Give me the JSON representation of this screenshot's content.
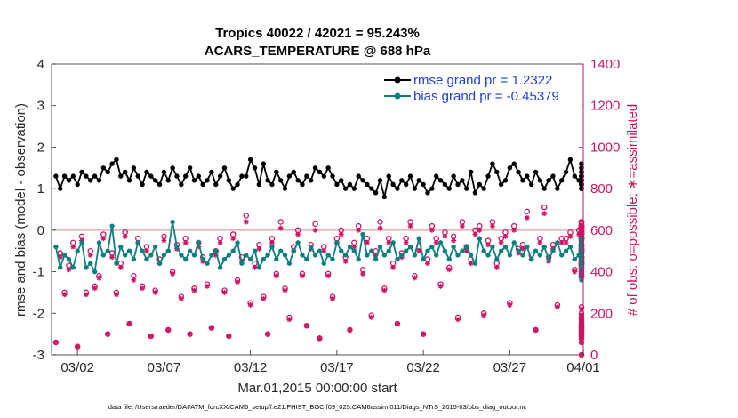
{
  "chart_data": {
    "type": "line",
    "title": "Tropics 40022 / 42021 = 95.243%",
    "subtitle": "ACARS_TEMPERATURE @ 688 hPa",
    "xlabel": "Mar.01,2015 00:00:00 start",
    "ylabel": "rmse and bias (model - observation)",
    "y2label": "# of obs: o=possible; ∗=assimilated",
    "footnote": "data file: /Users/raeder/DAI/ATM_forcXX/CAM6_setup/f.e21.FHIST_BGC.f09_025.CAM6assim.011/Diags_NTrS_2015-03/obs_diag_output.nc",
    "legend": [
      "rmse grand pr = 1.2322",
      "bias grand pr = -0.45379"
    ],
    "colors": {
      "rmse": "#000000",
      "bias": "#0e7f7f",
      "obs": "#cc1464",
      "legend_text": "#1f3fd6"
    },
    "xlim": [
      0.5,
      31.25
    ],
    "ylim": [
      -3,
      4
    ],
    "y2lim": [
      0,
      1400
    ],
    "xtick_values": [
      2,
      7,
      12,
      17,
      22,
      27,
      32
    ],
    "xtick_labels": [
      "03/02",
      "03/07",
      "03/12",
      "03/17",
      "03/22",
      "03/27",
      "04/01"
    ],
    "ytick_labels": [
      "-3",
      "-2",
      "-1",
      "0",
      "1",
      "2",
      "3",
      "4"
    ],
    "y2tick_labels": [
      "0",
      "200",
      "400",
      "600",
      "800",
      "1000",
      "1200",
      "1400"
    ],
    "x_start": 0.75,
    "x_step": 0.25,
    "series": [
      {
        "name": "rmse",
        "values": [
          1.3,
          1.0,
          1.3,
          1.2,
          1.3,
          1.1,
          1.4,
          1.3,
          1.2,
          1.3,
          1.2,
          1.5,
          1.4,
          1.6,
          1.7,
          1.3,
          1.4,
          1.2,
          1.5,
          1.3,
          1.1,
          1.4,
          1.3,
          1.2,
          1.1,
          1.4,
          1.2,
          1.5,
          1.3,
          1.1,
          1.3,
          1.5,
          1.2,
          1.3,
          1.1,
          1.2,
          1.4,
          1.1,
          1.3,
          1.5,
          1.2,
          1.0,
          1.1,
          1.3,
          1.3,
          1.7,
          1.5,
          1.1,
          1.6,
          1.2,
          1.1,
          1.4,
          1.2,
          1.0,
          1.3,
          1.4,
          1.2,
          1.1,
          1.3,
          1.2,
          1.5,
          1.4,
          1.3,
          1.5,
          1.3,
          1.1,
          1.2,
          1.0,
          1.1,
          1.0,
          1.3,
          1.2,
          1.1,
          1.0,
          0.9,
          1.2,
          0.8,
          1.3,
          1.1,
          1.0,
          1.2,
          1.1,
          1.3,
          1.0,
          1.2,
          1.1,
          0.9,
          1.0,
          1.3,
          1.2,
          1.1,
          1.0,
          1.3,
          1.1,
          1.2,
          1.0,
          1.4,
          0.9,
          1.1,
          1.0,
          1.3,
          1.6,
          1.4,
          1.1,
          1.2,
          1.5,
          1.6,
          1.4,
          1.2,
          1.3,
          1.1,
          1.4,
          1.2,
          1.0,
          1.2,
          1.3,
          1.0,
          1.2,
          1.4,
          1.7,
          1.3,
          1.2,
          1.0,
          1.4,
          1.3,
          1.1,
          1.2,
          1.0,
          1.1,
          1.3,
          1.2,
          1.0,
          1.2,
          1.3,
          1.1,
          1.0,
          1.2,
          1.1,
          1.3,
          1.1,
          1.0,
          1.2,
          1.1,
          1.3,
          1.0,
          1.1,
          1.2,
          1.0,
          1.1,
          1.3,
          1.1,
          1.3,
          1.2,
          1.3,
          1.1,
          1.2,
          1.3,
          1.0,
          1.2,
          1.1,
          1.2,
          1.1,
          1.0,
          1.2,
          1.6,
          1.1,
          1.4,
          1.0,
          1.3,
          1.1,
          1.5,
          1.2,
          1.0,
          1.2,
          1.1,
          1.2,
          1.1,
          1.0,
          1.6,
          1.3,
          1.2,
          1.0,
          1.1,
          1.2,
          1.1,
          1.1,
          1.2,
          1.1,
          1.2,
          1.3,
          1.1,
          1.0,
          1.2,
          1.4,
          1.1,
          1.0,
          1.2,
          1.1,
          1.0,
          1.3,
          1.1,
          1.2,
          1.0,
          1.2,
          1.1,
          1.3,
          1.0,
          1.2,
          1.1,
          1.2,
          1.0,
          1.1,
          1.0,
          1.2,
          1.3,
          1.1,
          1.2,
          1.0,
          1.2,
          1.1,
          1.0,
          1.5,
          1.2,
          1.1,
          1.3,
          1.0,
          1.1,
          1.2,
          1.2,
          1.0,
          1.3,
          1.4,
          1.3,
          1.2,
          1.5,
          1.1,
          1.0,
          1.3,
          1.2,
          1.0,
          1.1,
          1.4,
          1.3,
          1.2,
          1.1,
          1.1,
          1.2,
          1.0,
          1.2,
          1.1,
          1.0
        ]
      },
      {
        "name": "bias",
        "values": [
          -0.4,
          -0.9,
          -0.6,
          -0.7,
          -0.9,
          -0.5,
          -0.3,
          -0.9,
          -0.8,
          -1.0,
          -0.3,
          -0.6,
          -0.5,
          0.1,
          -0.8,
          -0.4,
          -0.6,
          -0.5,
          -0.7,
          -0.3,
          -0.5,
          -0.7,
          -0.6,
          -0.4,
          -0.8,
          -0.6,
          -0.5,
          0.2,
          -0.4,
          -0.6,
          -0.7,
          -0.5,
          -0.6,
          -0.3,
          -0.7,
          -0.8,
          -0.6,
          -0.5,
          -0.9,
          -0.7,
          -0.6,
          -0.5,
          -0.3,
          -0.8,
          -0.6,
          -0.7,
          -0.5,
          -0.9,
          -0.7,
          -0.6,
          -0.4,
          -0.7,
          -0.5,
          -0.6,
          -0.8,
          -0.5,
          -0.3,
          -0.6,
          -0.7,
          -0.4,
          -0.6,
          -0.5,
          -0.8,
          -0.6,
          -0.7,
          -0.3,
          -0.5,
          -0.6,
          -0.4,
          -0.5,
          -0.7,
          -0.1,
          -0.6,
          -0.5,
          -0.7,
          -0.4,
          -0.6,
          -0.5,
          -0.3,
          -0.7,
          -0.6,
          -0.5,
          -0.4,
          -0.6,
          -0.2,
          -0.7,
          -0.5,
          -0.4,
          -0.6,
          -0.3,
          -0.5,
          -0.7,
          -0.4,
          -0.6,
          -0.5,
          -0.4,
          -0.6,
          -0.8,
          -0.2,
          -0.5,
          -0.6,
          -0.4,
          -0.7,
          -0.5,
          -0.4,
          -0.6,
          -0.3,
          -0.5,
          -0.6,
          -0.4,
          -0.7,
          -0.5,
          -0.6,
          -0.4,
          -0.7,
          -0.5,
          -0.3,
          -0.6,
          -0.5,
          -0.4,
          -0.7,
          -0.6,
          -0.5,
          -0.4,
          -0.6,
          -0.5,
          -0.7,
          -0.4,
          -0.6,
          -0.5,
          -0.3,
          -0.6,
          -0.5,
          -0.7,
          -0.4,
          -0.6,
          -0.5,
          -0.4,
          -0.6,
          -0.5,
          -0.3,
          -0.6,
          -0.5,
          -0.4,
          -0.7,
          -0.6,
          -0.5,
          -0.4,
          -0.6,
          -0.7,
          -0.5,
          -0.4,
          -0.6,
          -0.5,
          -0.3,
          -0.6,
          -0.7,
          -0.5,
          -0.6,
          -0.4,
          -0.7,
          -0.5,
          -0.6,
          -0.4,
          -0.5,
          -0.6,
          -0.7,
          -0.5,
          -0.6,
          -0.4,
          -0.5,
          -0.7,
          -0.6,
          -0.5,
          -0.4,
          -0.6,
          -0.5,
          -0.7,
          -0.6,
          -0.4,
          -0.5,
          -0.6,
          -0.7,
          -0.5,
          -0.6,
          -0.4,
          -0.5,
          -0.6,
          -0.4,
          -0.7,
          -0.5,
          -0.6,
          -0.4,
          -0.5,
          -0.6,
          -0.5,
          -0.7,
          -0.6,
          -0.4,
          -0.5,
          -0.6,
          -0.4,
          -0.5,
          -0.7,
          -0.6,
          -0.5,
          -0.4,
          -0.6,
          -0.3,
          -0.5,
          -0.7,
          -0.6,
          -0.8,
          -0.5,
          -0.6,
          -0.4,
          -0.7,
          -0.6,
          -0.9,
          -0.4,
          -0.2,
          -0.7,
          -0.6,
          -0.5,
          -0.8,
          -0.6,
          -1.2,
          -0.7,
          -0.9,
          -0.5,
          -0.8,
          -0.6,
          -0.4,
          -0.3,
          -0.6,
          -0.5,
          -0.7,
          -0.6,
          -0.8,
          -0.5,
          -0.6,
          -0.4
        ]
      },
      {
        "name": "obs_possible",
        "axis": "right",
        "values": [
          60,
          490,
          300,
          430,
          540,
          40,
          570,
          300,
          500,
          330,
          380,
          580,
          100,
          490,
          300,
          440,
          590,
          150,
          380,
          560,
          330,
          520,
          90,
          310,
          460,
          570,
          120,
          400,
          530,
          280,
          560,
          100,
          320,
          540,
          470,
          340,
          130,
          500,
          560,
          310,
          90,
          580,
          360,
          470,
          670,
          250,
          440,
          530,
          280,
          100,
          560,
          390,
          640,
          320,
          180,
          520,
          600,
          390,
          140,
          530,
          630,
          80,
          520,
          390,
          280,
          560,
          600,
          470,
          120,
          540,
          620,
          410,
          560,
          190,
          500,
          640,
          320,
          560,
          440,
          150,
          490,
          560,
          640,
          380,
          520,
          100,
          460,
          620,
          560,
          340,
          590,
          420,
          570,
          180,
          640,
          520,
          460,
          600,
          620,
          200,
          550,
          640,
          440,
          560,
          590,
          250,
          620,
          510,
          530,
          690,
          480,
          120,
          560,
          710,
          470,
          530,
          240,
          560,
          560,
          590,
          410,
          600,
          640,
          470,
          540,
          90,
          530,
          640,
          400,
          560,
          640,
          60,
          510,
          600,
          490,
          180,
          560,
          640,
          440,
          590,
          100,
          520,
          620,
          390,
          460,
          630,
          80,
          490,
          620,
          430,
          560,
          130,
          520,
          600,
          440,
          590,
          170,
          500,
          620,
          380,
          550,
          140,
          500,
          610,
          470,
          560,
          120,
          530,
          600,
          420,
          580,
          160,
          510,
          620,
          440,
          560,
          140,
          490,
          610,
          380,
          590,
          110,
          520,
          600,
          460,
          560,
          130,
          500,
          620,
          420,
          580,
          150,
          510,
          610,
          440,
          560,
          90,
          490,
          600,
          470,
          580,
          120,
          520,
          610,
          420,
          560,
          140,
          500,
          620,
          450,
          590,
          110,
          510,
          600,
          430,
          570,
          130,
          490,
          620,
          450,
          580,
          100,
          500,
          610,
          440,
          560,
          120,
          520,
          600,
          470,
          590,
          140,
          510,
          620,
          420,
          560,
          200,
          500,
          610,
          450,
          580,
          230,
          510,
          620,
          450,
          560,
          80,
          500,
          600,
          440,
          580,
          0
        ]
      },
      {
        "name": "obs_assimilated",
        "axis": "right",
        "values": [
          60,
          470,
          290,
          410,
          520,
          40,
          550,
          290,
          480,
          320,
          370,
          560,
          100,
          470,
          290,
          420,
          570,
          150,
          360,
          540,
          320,
          500,
          90,
          300,
          440,
          550,
          120,
          390,
          510,
          270,
          540,
          100,
          310,
          520,
          450,
          330,
          130,
          480,
          540,
          300,
          90,
          560,
          350,
          450,
          640,
          240,
          420,
          510,
          270,
          100,
          540,
          380,
          610,
          310,
          170,
          500,
          580,
          380,
          140,
          510,
          600,
          80,
          500,
          380,
          270,
          540,
          580,
          450,
          120,
          520,
          600,
          390,
          540,
          180,
          480,
          610,
          310,
          540,
          420,
          150,
          470,
          540,
          620,
          370,
          500,
          100,
          440,
          600,
          540,
          330,
          570,
          410,
          550,
          170,
          620,
          500,
          440,
          580,
          600,
          190,
          530,
          620,
          420,
          540,
          570,
          240,
          600,
          490,
          510,
          660,
          460,
          120,
          540,
          680,
          450,
          510,
          230,
          540,
          540,
          570,
          400,
          580,
          620,
          450,
          520,
          90,
          510,
          610,
          390,
          540,
          620,
          60,
          490,
          580,
          470,
          170,
          540,
          620,
          420,
          570,
          100,
          500,
          600,
          380,
          440,
          610,
          80,
          470,
          600,
          410,
          540,
          130,
          500,
          580,
          420,
          570,
          160,
          480,
          600,
          370,
          530,
          140,
          480,
          590,
          450,
          540,
          120,
          510,
          580,
          410,
          560,
          150,
          490,
          600,
          420,
          540,
          140,
          470,
          590,
          370,
          570,
          110,
          500,
          580,
          440,
          540,
          130,
          480,
          600,
          410,
          560,
          140,
          490,
          590,
          420,
          540,
          90,
          470,
          580,
          450,
          560,
          120,
          500,
          590,
          410,
          540,
          140,
          480,
          600,
          430,
          570,
          110,
          490,
          580,
          420,
          550,
          130,
          470,
          600,
          430,
          560,
          100,
          480,
          590,
          420,
          540,
          120,
          500,
          580,
          450,
          570,
          140,
          490,
          600,
          410,
          540,
          190,
          480,
          590,
          430,
          560,
          220,
          490,
          600,
          430,
          540,
          80,
          480,
          580,
          420,
          560,
          0
        ]
      }
    ]
  }
}
